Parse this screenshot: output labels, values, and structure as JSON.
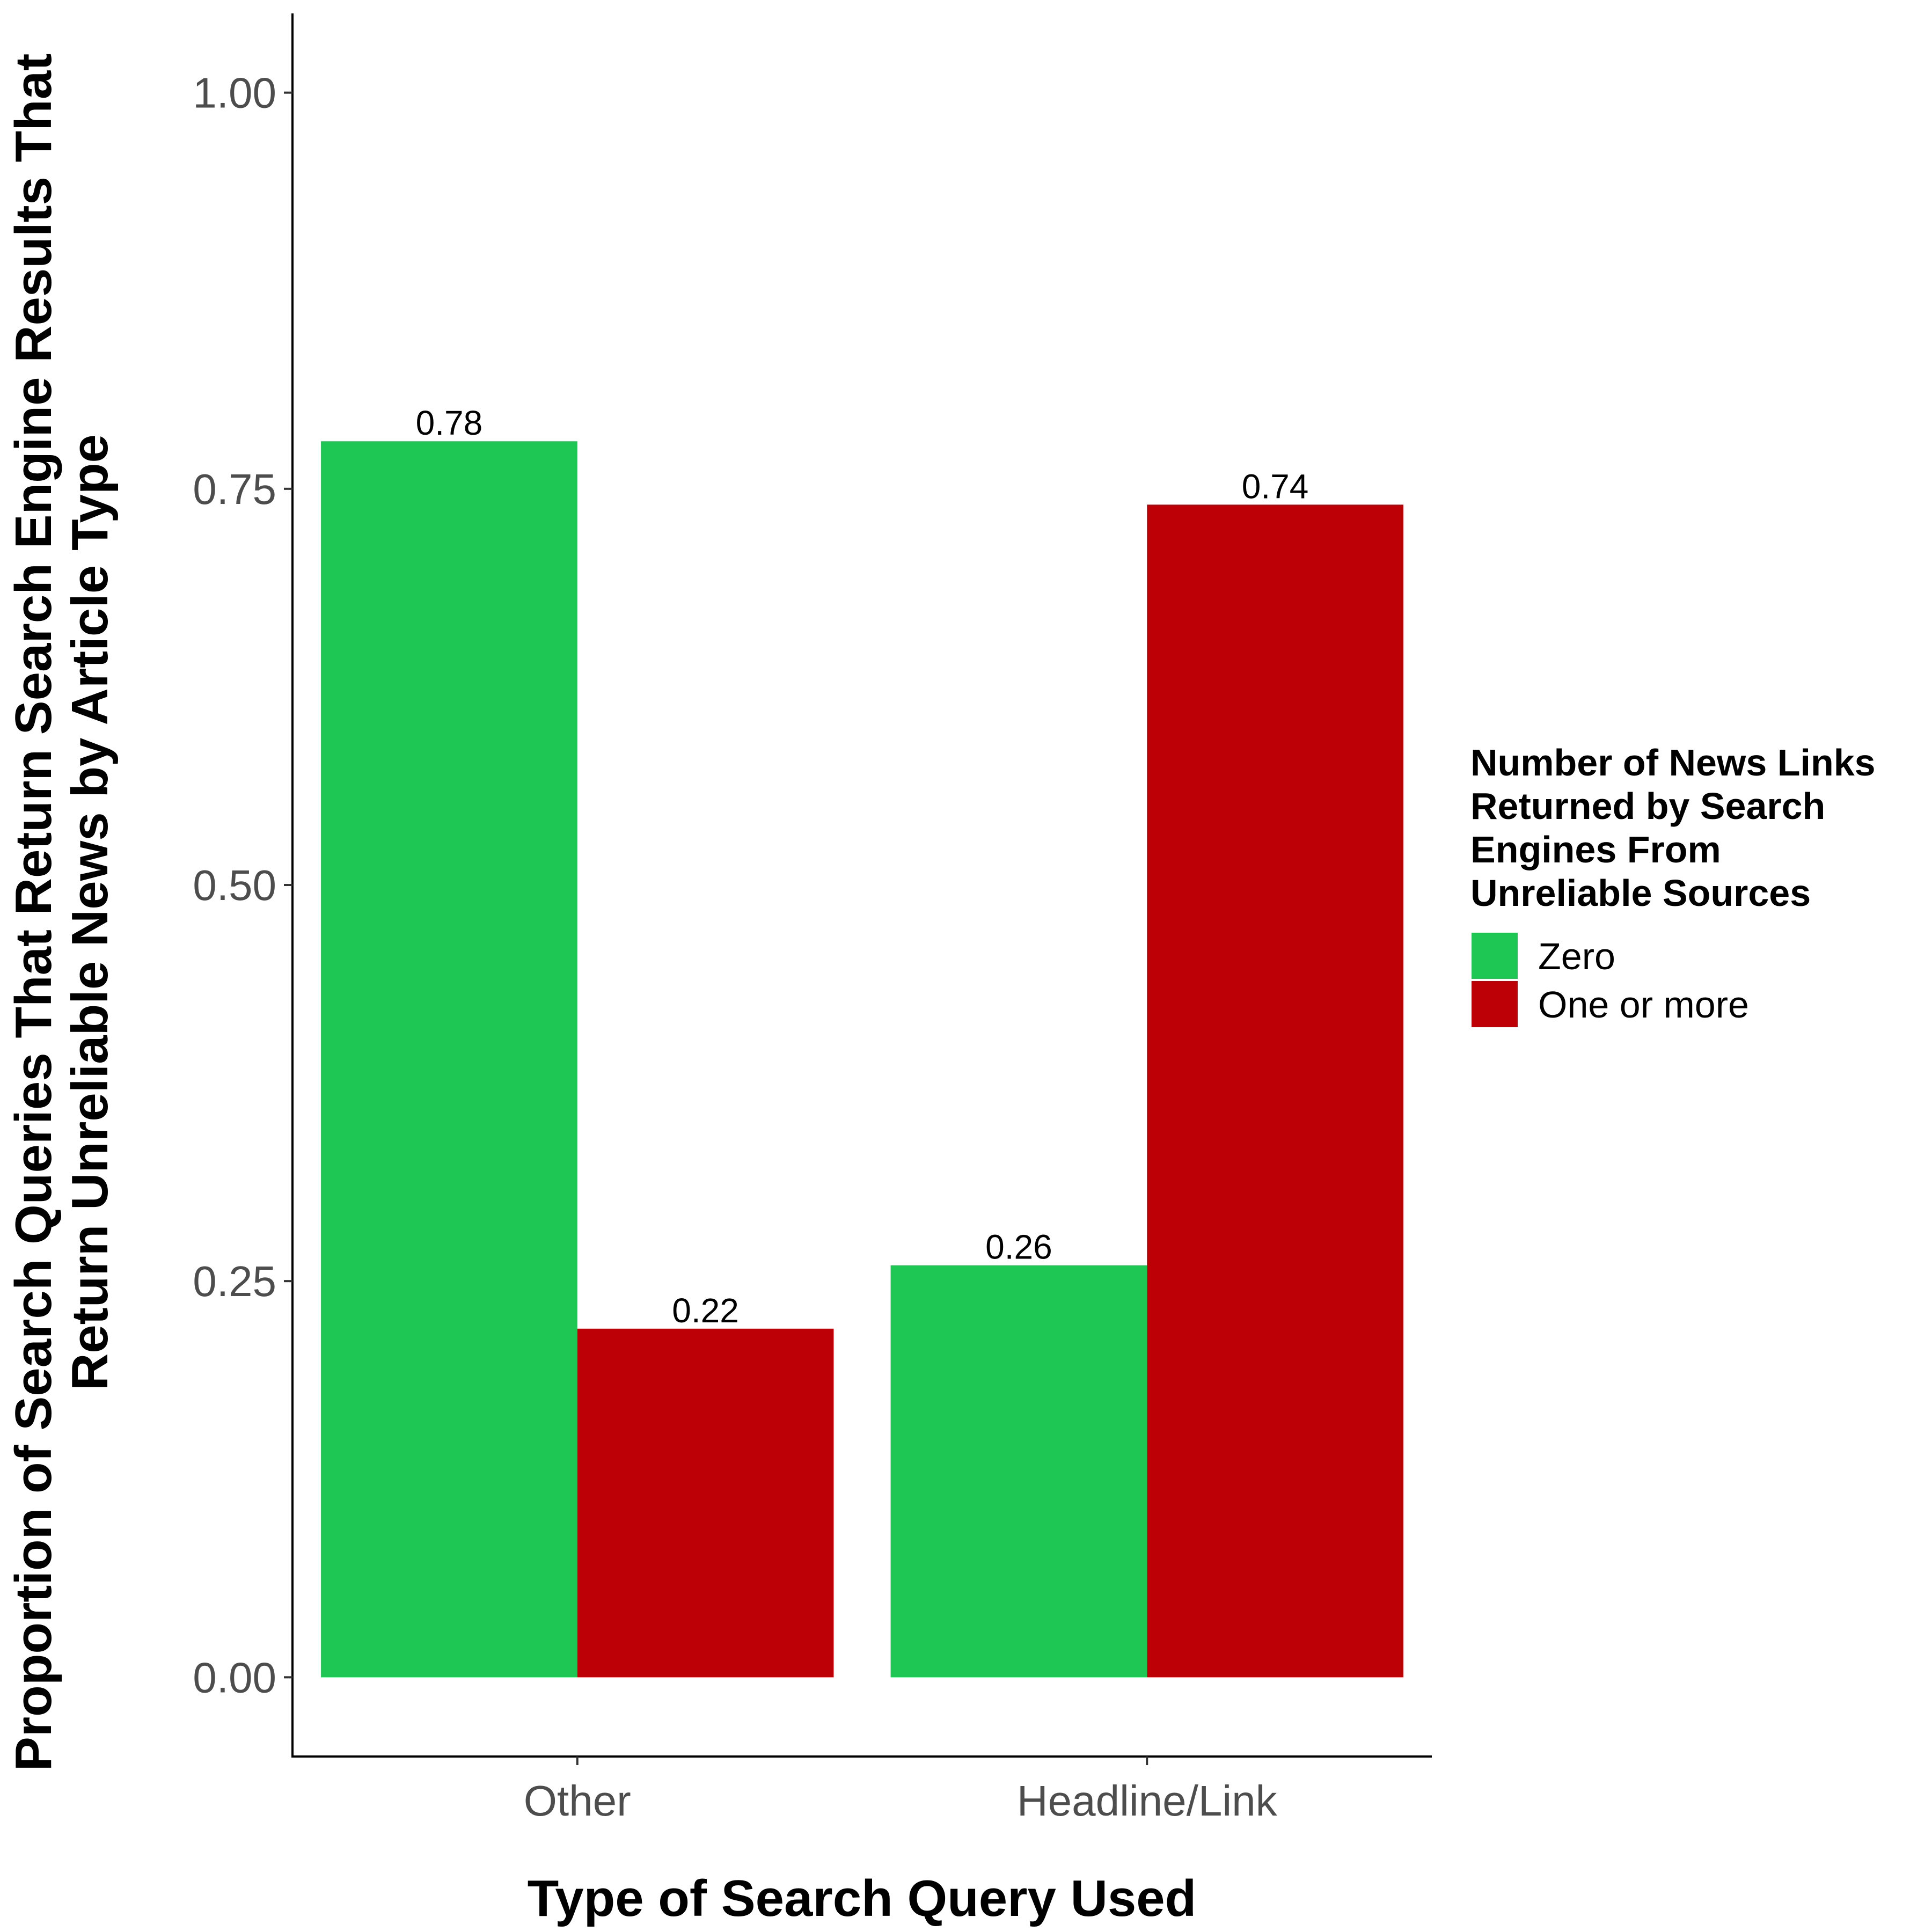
{
  "chart_data": {
    "type": "bar",
    "categories": [
      "Other",
      "Headline/Link"
    ],
    "series": [
      {
        "name": "Zero",
        "values": [
          0.78,
          0.26
        ],
        "labels": [
          "0.78",
          "0.26"
        ],
        "color": "#1EC653"
      },
      {
        "name": "One or more",
        "values": [
          0.22,
          0.74
        ],
        "labels": [
          "0.22",
          "0.74"
        ],
        "color": "#BC0005"
      }
    ],
    "xlabel": "Type of Search Query Used",
    "ylabel_lines": [
      "Proportion of Search Queries That Return Search Engine Results That",
      "Return Unreliable News by Article Type"
    ],
    "yticks": [
      0.0,
      0.25,
      0.5,
      0.75,
      1.0
    ],
    "ytick_labels": [
      "0.00",
      "0.25",
      "0.50",
      "0.75",
      "1.00"
    ],
    "ylim": [
      -0.05,
      1.05
    ],
    "legend": {
      "title_lines": [
        "Number of News Links",
        "Returned by Search",
        "Engines From",
        "Unreliable Sources"
      ],
      "position": "right"
    },
    "grid": false
  }
}
